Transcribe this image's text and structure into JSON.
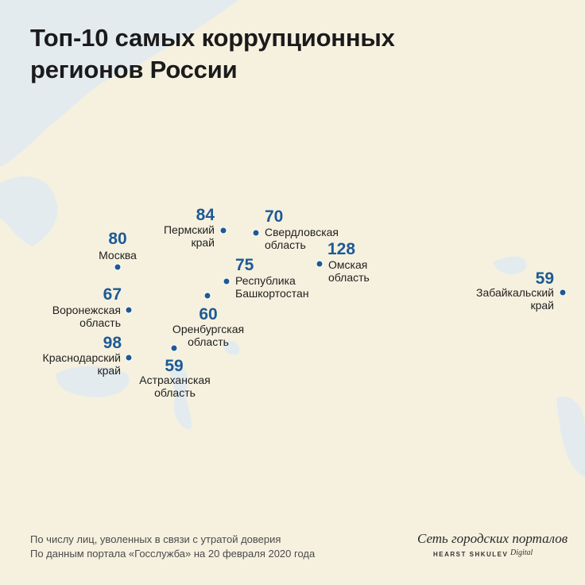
{
  "title": [
    "Топ-10 самых коррупционных",
    "регионов России"
  ],
  "regions": [
    {
      "name": [
        "Москва"
      ],
      "value": 80
    },
    {
      "name": [
        "Пермский",
        "край"
      ],
      "value": 84
    },
    {
      "name": [
        "Свердловская",
        "область"
      ],
      "value": 70
    },
    {
      "name": [
        "Омская",
        "область"
      ],
      "value": 128
    },
    {
      "name": [
        "Республика",
        "Башкортостан"
      ],
      "value": 75
    },
    {
      "name": [
        "Оренбургская",
        "область"
      ],
      "value": 60
    },
    {
      "name": [
        "Воронежская",
        "область"
      ],
      "value": 67
    },
    {
      "name": [
        "Краснодарский",
        "край"
      ],
      "value": 98
    },
    {
      "name": [
        "Астраханская",
        "область"
      ],
      "value": 59
    },
    {
      "name": [
        "Забайкальский",
        "край"
      ],
      "value": 59
    }
  ],
  "notes": [
    "По числу лиц, уволенных в связи с утратой доверия",
    "По данным портала «Госслужба» на 20 февраля 2020 года"
  ],
  "logo": {
    "name": "Сеть городских порталов",
    "company": "HEARST SHKULEV",
    "division": "Digital"
  }
}
